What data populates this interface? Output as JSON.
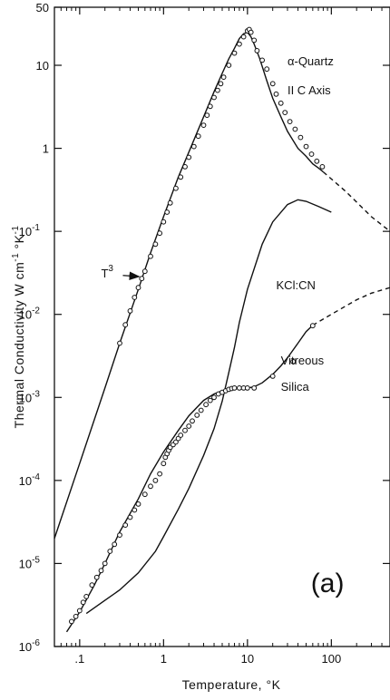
{
  "chart_data": {
    "type": "line",
    "x_scale": "log",
    "y_scale": "log",
    "xlim": [
      0.05,
      500
    ],
    "ylim": [
      1e-06,
      50
    ],
    "xlabel": "Temperature, °K",
    "ylabel": "Thermal Conductivity W cm-1 °K-1",
    "ylabel_parts": [
      "Thermal",
      "Conductivity",
      "W cm",
      "-1",
      "°K",
      "-1"
    ],
    "x_ticks": [
      {
        "value": 0.1,
        "label": ".1"
      },
      {
        "value": 1,
        "label": "1"
      },
      {
        "value": 10,
        "label": "10"
      },
      {
        "value": 100,
        "label": "100"
      }
    ],
    "y_ticks": [
      {
        "value": 50,
        "label": "50",
        "kind": "plain"
      },
      {
        "value": 10,
        "label": "10",
        "kind": "plain"
      },
      {
        "value": 1,
        "label": "1",
        "kind": "plain"
      },
      {
        "value": 0.1,
        "label": "10",
        "exp": "-1",
        "kind": "pow"
      },
      {
        "value": 0.01,
        "label": "10",
        "exp": "-2",
        "kind": "pow"
      },
      {
        "value": 0.001,
        "label": "10",
        "exp": "-3",
        "kind": "pow"
      },
      {
        "value": 0.0001,
        "label": "10",
        "exp": "-4",
        "kind": "pow"
      },
      {
        "value": 1e-05,
        "label": "10",
        "exp": "-5",
        "kind": "pow"
      },
      {
        "value": 1e-06,
        "label": "10",
        "exp": "-6",
        "kind": "pow"
      }
    ],
    "series": [
      {
        "name": "α-Quartz II C Axis",
        "style": "solid",
        "x": [
          0.05,
          0.1,
          0.2,
          0.3,
          0.5,
          0.7,
          1,
          1.5,
          2,
          3,
          4,
          5,
          6,
          7,
          8,
          9,
          10,
          11,
          12,
          14,
          17,
          20,
          25,
          30,
          40,
          50,
          60,
          70,
          80
        ],
        "y": [
          2e-05,
          0.00016,
          0.0013,
          0.0045,
          0.02,
          0.055,
          0.15,
          0.45,
          0.9,
          2.4,
          4.8,
          8,
          12,
          16,
          21,
          24,
          25,
          22,
          18,
          12,
          6.5,
          4,
          2.4,
          1.6,
          1.0,
          0.8,
          0.65,
          0.58,
          0.52
        ]
      },
      {
        "name": "α-Quartz (extrapolated)",
        "style": "dashed",
        "x": [
          80,
          150,
          300,
          500
        ],
        "y": [
          0.52,
          0.3,
          0.15,
          0.1
        ]
      },
      {
        "name": "KCl:CN",
        "style": "solid",
        "x": [
          0.12,
          0.2,
          0.3,
          0.5,
          0.8,
          1.0,
          1.5,
          2,
          3,
          4,
          5,
          6,
          7,
          8,
          10,
          15,
          20,
          30,
          40,
          50,
          70,
          100
        ],
        "y": [
          2.5e-06,
          3.6e-06,
          4.8e-06,
          7.7e-06,
          1.4e-05,
          2.1e-05,
          4.5e-05,
          8e-05,
          0.0002,
          0.00042,
          0.0009,
          0.002,
          0.004,
          0.008,
          0.02,
          0.07,
          0.13,
          0.21,
          0.24,
          0.23,
          0.2,
          0.17
        ]
      },
      {
        "name": "Vitreous Silica",
        "style": "solid",
        "x": [
          0.07,
          0.1,
          0.15,
          0.2,
          0.3,
          0.5,
          0.7,
          1,
          1.5,
          2,
          3,
          4,
          5,
          6,
          8,
          10,
          12,
          15,
          20,
          25,
          30,
          40,
          50,
          60
        ],
        "y": [
          1.5e-06,
          2.6e-06,
          5.5e-06,
          1e-05,
          2.4e-05,
          6e-05,
          0.00012,
          0.00022,
          0.0004,
          0.0006,
          0.00092,
          0.0011,
          0.0012,
          0.0013,
          0.0013,
          0.0013,
          0.00134,
          0.0015,
          0.0019,
          0.0024,
          0.003,
          0.0045,
          0.0062,
          0.0074
        ]
      },
      {
        "name": "Vitreous Silica (extrapolated)",
        "style": "dashed",
        "x": [
          60,
          100,
          200,
          300,
          500
        ],
        "y": [
          0.0074,
          0.01,
          0.015,
          0.018,
          0.021
        ]
      }
    ],
    "markers": [
      {
        "series": "α-Quartz II C Axis",
        "x": [
          0.3,
          0.35,
          0.4,
          0.45,
          0.5,
          0.55,
          0.6,
          0.7,
          0.8,
          0.9,
          1.0,
          1.1,
          1.2,
          1.4,
          1.6,
          1.8,
          2.0,
          2.3,
          2.6,
          3.0,
          3.3,
          3.6,
          4.0,
          4.4,
          4.8,
          5.2,
          6,
          7,
          8,
          9,
          10,
          10.5,
          11,
          12,
          13,
          15,
          17,
          20,
          22,
          25,
          28,
          32,
          37,
          43,
          50,
          58,
          67,
          78
        ],
        "y": [
          0.0045,
          0.0075,
          0.011,
          0.016,
          0.021,
          0.027,
          0.033,
          0.05,
          0.07,
          0.095,
          0.13,
          0.17,
          0.22,
          0.33,
          0.45,
          0.6,
          0.78,
          1.05,
          1.4,
          1.9,
          2.5,
          3.2,
          4.1,
          5,
          6,
          7.2,
          10,
          14,
          18,
          22,
          26,
          27,
          25,
          20,
          15,
          11.5,
          9,
          6,
          4.5,
          3.5,
          2.7,
          2.1,
          1.7,
          1.35,
          1.05,
          0.85,
          0.7,
          0.6
        ]
      },
      {
        "series": "Vitreous Silica",
        "x": [
          0.08,
          0.09,
          0.1,
          0.11,
          0.12,
          0.14,
          0.16,
          0.18,
          0.2,
          0.23,
          0.26,
          0.3,
          0.35,
          0.4,
          0.45,
          0.5,
          0.6,
          0.7,
          0.8,
          0.9,
          1.0,
          1.05,
          1.1,
          1.15,
          1.2,
          1.3,
          1.4,
          1.5,
          1.6,
          1.8,
          2.0,
          2.2,
          2.5,
          2.8,
          3.2,
          3.6,
          4.0,
          4.5,
          5.0,
          5.5,
          6.0,
          6.5,
          7.0,
          8.0,
          9.0,
          10,
          12,
          20,
          35,
          60
        ],
        "y": [
          2e-06,
          2.3e-06,
          2.7e-06,
          3.4e-06,
          4e-06,
          5.5e-06,
          6.8e-06,
          8.2e-06,
          1e-05,
          1.4e-05,
          1.7e-05,
          2.2e-05,
          2.9e-05,
          3.6e-05,
          4.4e-05,
          5.2e-05,
          6.8e-05,
          8.5e-05,
          0.0001,
          0.00012,
          0.00016,
          0.00019,
          0.00021,
          0.00023,
          0.00025,
          0.00027,
          0.00029,
          0.00032,
          0.00035,
          0.0004,
          0.00045,
          0.00052,
          0.00061,
          0.0007,
          0.00082,
          0.00092,
          0.001,
          0.0011,
          0.00115,
          0.0012,
          0.00125,
          0.00128,
          0.0013,
          0.0013,
          0.0013,
          0.0013,
          0.0013,
          0.0018,
          0.0027,
          0.0073
        ]
      }
    ],
    "annotations": [
      {
        "text": "α-Quartz",
        "x": 30,
        "y": 10
      },
      {
        "text": "II C Axis",
        "x": 30,
        "y": 4.5
      },
      {
        "text": "KCl:CN",
        "x": 22,
        "y": 0.02
      },
      {
        "text": "Vitreous",
        "x": 25,
        "y": 0.0025
      },
      {
        "text": "Silica",
        "x": 25,
        "y": 0.0012
      },
      {
        "text": "T",
        "sup": "3",
        "x": 0.18,
        "y": 0.028,
        "arrow_to": [
          0.55,
          0.03
        ]
      },
      {
        "text": "(a)",
        "x": 90,
        "y": 4.5e-06
      }
    ],
    "grid": false,
    "legend": "none"
  }
}
